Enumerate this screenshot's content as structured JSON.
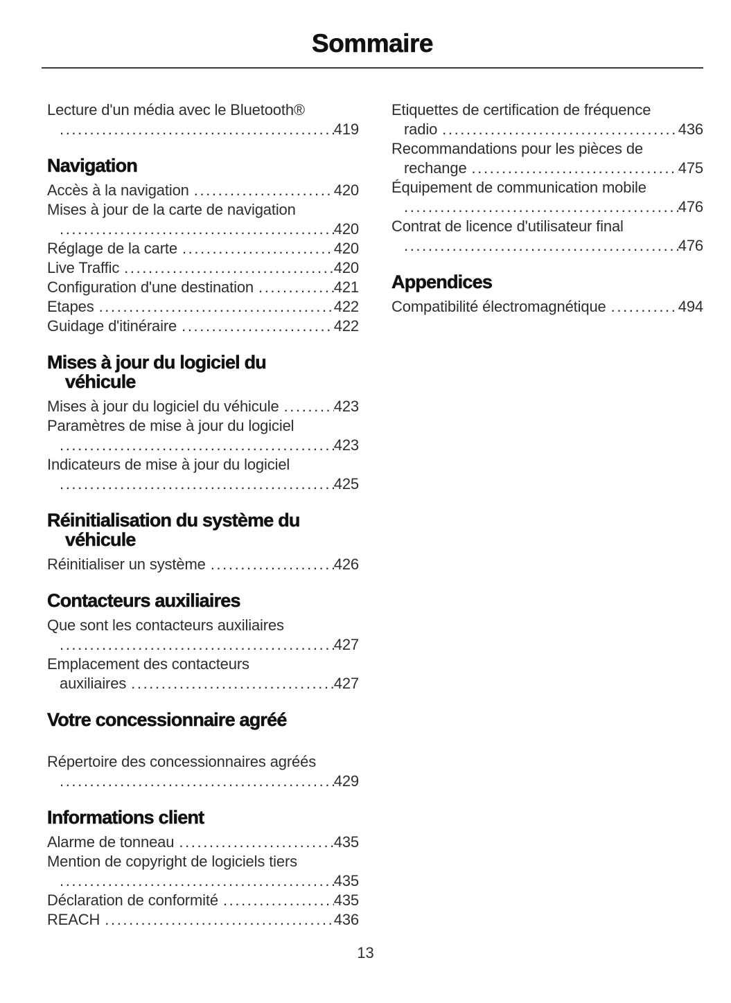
{
  "document": {
    "title": "Sommaire",
    "page_number": "13"
  },
  "colors": {
    "text": "#2d2d2d",
    "heading": "#121212",
    "rule": "#3d3a3a",
    "background": "#ffffff"
  },
  "columns": {
    "left": {
      "sections": [
        {
          "header_lines": [],
          "entries": [
            {
              "lines": [
                {
                  "text": "Lecture d'un média avec le Bluetooth®"
                },
                {
                  "text": "",
                  "page": "419",
                  "cont": true
                }
              ]
            }
          ]
        },
        {
          "header_lines": [
            "Navigation"
          ],
          "entries": [
            {
              "lines": [
                {
                  "text": "Accès à la navigation",
                  "page": "420"
                }
              ]
            },
            {
              "lines": [
                {
                  "text": "Mises à jour de la carte de navigation"
                },
                {
                  "text": "",
                  "page": "420",
                  "cont": true
                }
              ]
            },
            {
              "lines": [
                {
                  "text": "Réglage de la carte",
                  "page": "420"
                }
              ]
            },
            {
              "lines": [
                {
                  "text": "Live Traffic",
                  "page": "420"
                }
              ]
            },
            {
              "lines": [
                {
                  "text": "Configuration d'une destination",
                  "page": "421"
                }
              ]
            },
            {
              "lines": [
                {
                  "text": "Etapes",
                  "page": "422"
                }
              ]
            },
            {
              "lines": [
                {
                  "text": "Guidage d'itinéraire",
                  "page": "422"
                }
              ]
            }
          ]
        },
        {
          "header_lines": [
            "Mises à jour du logiciel du",
            "véhicule"
          ],
          "entries": [
            {
              "lines": [
                {
                  "text": "Mises à jour du logiciel du véhicule",
                  "page": "423"
                }
              ]
            },
            {
              "lines": [
                {
                  "text": "Paramètres de mise à jour du logiciel"
                },
                {
                  "text": "",
                  "page": "423",
                  "cont": true
                }
              ]
            },
            {
              "lines": [
                {
                  "text": "Indicateurs de mise à jour du logiciel"
                },
                {
                  "text": "",
                  "page": "425",
                  "cont": true
                }
              ]
            }
          ]
        },
        {
          "header_lines": [
            "Réinitialisation du système du",
            "véhicule"
          ],
          "entries": [
            {
              "lines": [
                {
                  "text": "Réinitialiser un système",
                  "page": "426"
                }
              ]
            }
          ]
        },
        {
          "header_lines": [
            "Contacteurs auxiliaires"
          ],
          "entries": [
            {
              "lines": [
                {
                  "text": "Que sont les contacteurs auxiliaires"
                },
                {
                  "text": "",
                  "page": "427",
                  "cont": true
                }
              ]
            },
            {
              "lines": [
                {
                  "text": "Emplacement des contacteurs"
                },
                {
                  "text": "auxiliaires",
                  "page": "427",
                  "cont": true
                }
              ]
            }
          ]
        },
        {
          "header_lines": [
            "Votre concessionnaire agréé"
          ],
          "gap_after_header": true,
          "entries": [
            {
              "lines": [
                {
                  "text": "Répertoire des concessionnaires agréés"
                },
                {
                  "text": "",
                  "page": "429",
                  "cont": true
                }
              ]
            }
          ]
        },
        {
          "header_lines": [
            "Informations client"
          ],
          "entries": [
            {
              "lines": [
                {
                  "text": "Alarme de tonneau",
                  "page": "435"
                }
              ]
            },
            {
              "lines": [
                {
                  "text": "Mention de copyright de logiciels tiers"
                },
                {
                  "text": "",
                  "page": "435",
                  "cont": true
                }
              ]
            },
            {
              "lines": [
                {
                  "text": "Déclaration de conformité",
                  "page": "435"
                }
              ]
            },
            {
              "lines": [
                {
                  "text": "REACH",
                  "page": "436"
                }
              ]
            }
          ]
        }
      ]
    },
    "right": {
      "sections": [
        {
          "header_lines": [],
          "entries": [
            {
              "lines": [
                {
                  "text": "Etiquettes de certification de fréquence"
                },
                {
                  "text": "radio",
                  "page": "436",
                  "cont": true
                }
              ]
            },
            {
              "lines": [
                {
                  "text": "Recommandations pour les pièces de"
                },
                {
                  "text": "rechange",
                  "page": "475",
                  "cont": true
                }
              ]
            },
            {
              "lines": [
                {
                  "text": "Équipement de communication mobile"
                },
                {
                  "text": "",
                  "page": "476",
                  "cont": true
                }
              ]
            },
            {
              "lines": [
                {
                  "text": "Contrat de licence d'utilisateur final"
                },
                {
                  "text": "",
                  "page": "476",
                  "cont": true
                }
              ]
            }
          ]
        },
        {
          "header_lines": [
            "Appendices"
          ],
          "entries": [
            {
              "lines": [
                {
                  "text": "Compatibilité électromagnétique",
                  "page": "494"
                }
              ]
            }
          ]
        }
      ]
    }
  }
}
